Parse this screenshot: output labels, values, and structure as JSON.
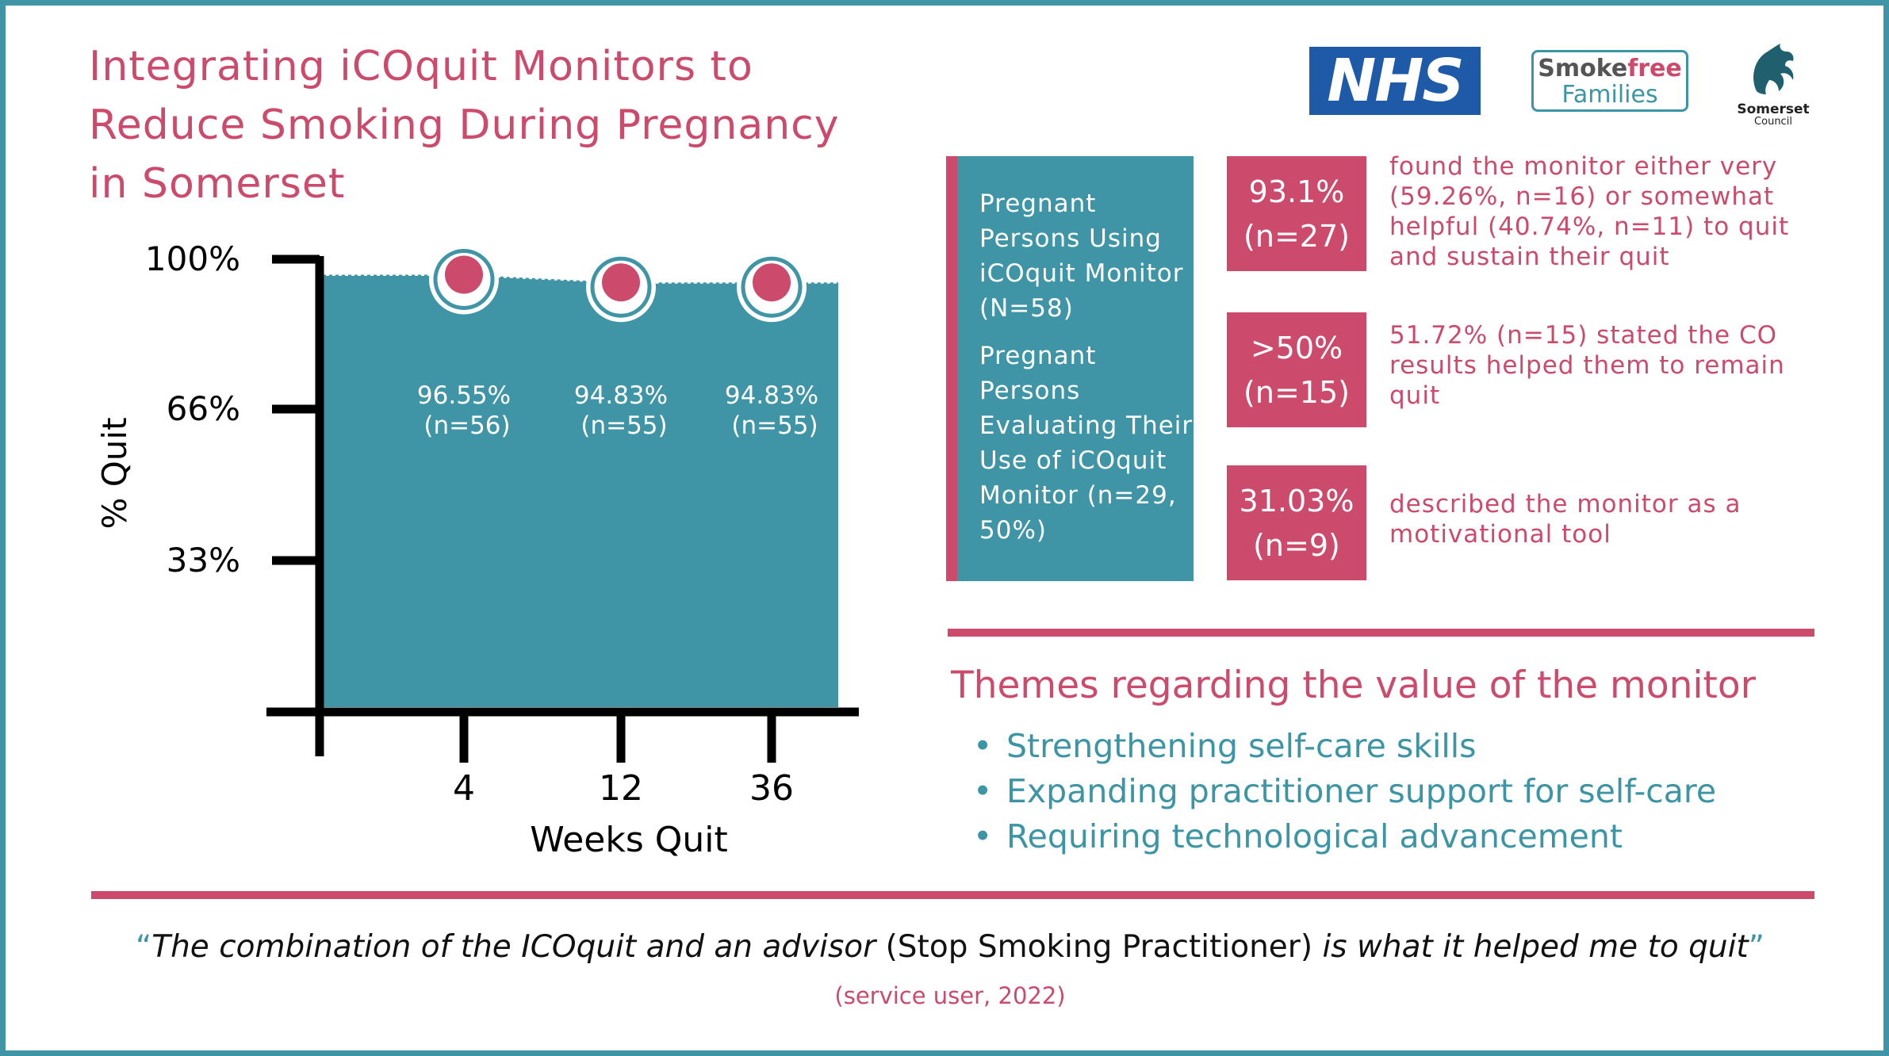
{
  "title": "Integrating iCOquit Monitors to Reduce Smoking During Pregnancy in Somerset",
  "logos": {
    "nhs": "NHS",
    "smokefree_part1": "Smoke",
    "smokefree_part2": "free",
    "families": "Families",
    "council_name": "Somerset",
    "council_sub": "Council"
  },
  "colors": {
    "pink": "#cc4a6b",
    "teal": "#3f95a6"
  },
  "chart_data": {
    "type": "area",
    "xlabel": "Weeks Quit",
    "ylabel": "% Quit",
    "y_ticks": [
      "100%",
      "66%",
      "33%"
    ],
    "y_tick_values": [
      100,
      66,
      33
    ],
    "x": [
      4,
      12,
      36
    ],
    "x_tick_labels": [
      "4",
      "12",
      "36"
    ],
    "values": [
      96.55,
      94.83,
      94.83
    ],
    "data_labels": [
      {
        "pct": "96.55%",
        "n": "(n=56)"
      },
      {
        "pct": "94.83%",
        "n": "(n=55)"
      },
      {
        "pct": "94.83%",
        "n": "(n=55)"
      }
    ],
    "ylim": [
      0,
      100
    ]
  },
  "cohort_card": {
    "line1": "Pregnant Persons Using iCOquit Monitor (N=58)",
    "line2": "Pregnant Persons Evaluating Their Use of iCOquit Monitor (n=29, 50%)"
  },
  "stats": [
    {
      "value": "93.1%",
      "n": "(n=27)",
      "desc": "found the monitor either very (59.26%, n=16) or somewhat helpful (40.74%, n=11) to quit and sustain their quit"
    },
    {
      "value": ">50%",
      "n": "(n=15)",
      "desc": "51.72% (n=15) stated the CO results helped them to remain quit"
    },
    {
      "value": "31.03%",
      "n": "(n=9)",
      "desc": "described the monitor as a motivational tool"
    }
  ],
  "themes": {
    "heading": "Themes regarding the value of the monitor",
    "items": [
      "Strengthening self-care skills",
      "Expanding practitioner support for self-care",
      "Requiring technological advancement"
    ]
  },
  "quote": {
    "open": "“",
    "part1": "The combination of the ICOquit and an advisor",
    "part2": " (Stop Smoking Practitioner) ",
    "part3": "is what it helped me to quit",
    "close": "”",
    "attribution": "(service user, 2022)"
  }
}
